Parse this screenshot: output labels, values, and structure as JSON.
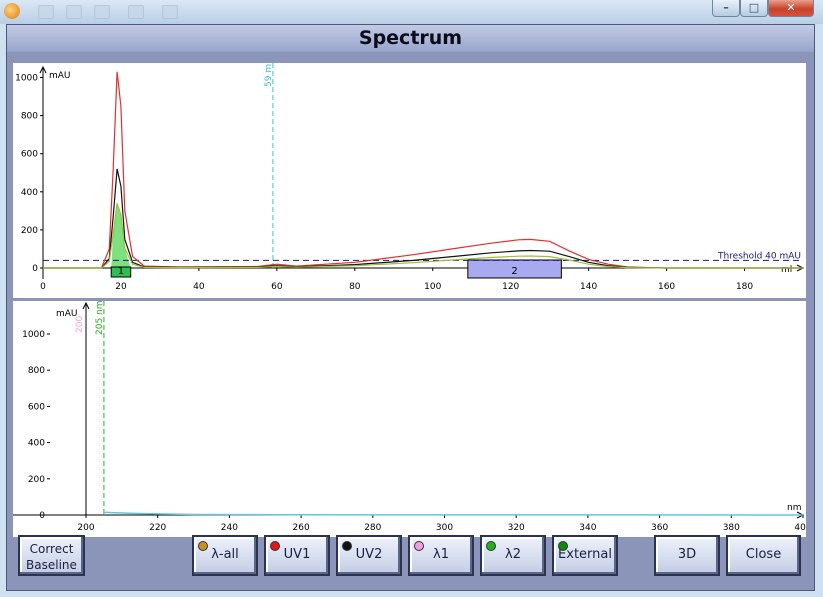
{
  "dialog": {
    "title": "Spectrum"
  },
  "window": {
    "min": "–",
    "max": "□",
    "close": "✕"
  },
  "top_chart": {
    "y_unit": "mAU",
    "x_unit": "ml",
    "y_ticks": [
      "0",
      "200",
      "400",
      "600",
      "800",
      "1000"
    ],
    "x_ticks": [
      "0",
      "20",
      "40",
      "60",
      "80",
      "100",
      "120",
      "140",
      "160",
      "180"
    ],
    "threshold_label": "Threshold 40 mAU",
    "marker_label": "59 ml",
    "peaks": [
      "1",
      "2"
    ]
  },
  "bottom_chart": {
    "y_unit": "mAU",
    "x_unit": "nm",
    "y_ticks": [
      "0",
      "200",
      "400",
      "600",
      "800",
      "1000"
    ],
    "x_ticks": [
      "200",
      "220",
      "240",
      "260",
      "280",
      "300",
      "320",
      "340",
      "360",
      "380",
      "400"
    ],
    "marker1_label": "200",
    "marker2_label": "205 nm"
  },
  "chart_data": [
    {
      "type": "line",
      "xlabel": "ml",
      "ylabel": "mAU",
      "xlim": [
        0,
        195
      ],
      "ylim": [
        -50,
        1050
      ],
      "threshold": 40,
      "marker_x": 59,
      "series": [
        {
          "color": "#e03030",
          "x": [
            0,
            15,
            17,
            18,
            19,
            20,
            21,
            23,
            26,
            35,
            55,
            60,
            65,
            80,
            95,
            105,
            115,
            122,
            125,
            130,
            135,
            140,
            145,
            150,
            160,
            195
          ],
          "y": [
            0,
            0,
            100,
            520,
            1030,
            850,
            300,
            60,
            10,
            5,
            8,
            20,
            10,
            30,
            70,
            100,
            130,
            148,
            150,
            140,
            90,
            45,
            20,
            5,
            0,
            0
          ]
        },
        {
          "color": "#111111",
          "x": [
            0,
            15,
            17,
            18,
            19,
            20,
            21,
            23,
            26,
            35,
            55,
            60,
            65,
            80,
            95,
            105,
            115,
            122,
            125,
            130,
            135,
            140,
            145,
            150,
            160,
            195
          ],
          "y": [
            0,
            0,
            50,
            270,
            520,
            430,
            150,
            30,
            5,
            3,
            5,
            12,
            6,
            18,
            40,
            60,
            80,
            90,
            92,
            88,
            60,
            30,
            12,
            3,
            0,
            0
          ]
        },
        {
          "color": "#9bc23a",
          "x": [
            0,
            15,
            17,
            18,
            19,
            20,
            21,
            23,
            26,
            35,
            55,
            60,
            65,
            80,
            95,
            105,
            115,
            122,
            125,
            130,
            135,
            140,
            145,
            150,
            160,
            195
          ],
          "y": [
            0,
            0,
            35,
            180,
            340,
            280,
            100,
            20,
            3,
            2,
            3,
            8,
            4,
            12,
            28,
            42,
            55,
            62,
            63,
            60,
            42,
            20,
            8,
            2,
            0,
            0
          ]
        }
      ],
      "regions": [
        {
          "label": "1",
          "from": 17.5,
          "to": 22.5,
          "color": "#7ee07e"
        },
        {
          "label": "2",
          "from": 109,
          "to": 133,
          "color": "#a9a9f0"
        }
      ]
    },
    {
      "type": "line",
      "xlabel": "nm",
      "ylabel": "mAU",
      "xlim": [
        190,
        400
      ],
      "ylim": [
        0,
        1100
      ],
      "markers": [
        200,
        205
      ],
      "series": [
        {
          "color": "#66c4dc",
          "x": [
            205,
            208,
            212,
            220,
            230,
            260,
            400
          ],
          "y": [
            15,
            12,
            10,
            6,
            3,
            1,
            0
          ]
        }
      ]
    }
  ],
  "buttons": {
    "correct_baseline": "Correct\nBaseline",
    "lambda_all": "λ-all",
    "uv1": "UV1",
    "uv2": "UV2",
    "lambda1": "λ1",
    "lambda2": "λ2",
    "external": "External",
    "three_d": "3D",
    "close": "Close"
  },
  "colors": {
    "lambda_all": "#c8901e",
    "uv1": "#e01818",
    "uv2": "#111111",
    "lambda1": "#f0a0e0",
    "lambda2": "#20b020",
    "external": "#108810"
  }
}
